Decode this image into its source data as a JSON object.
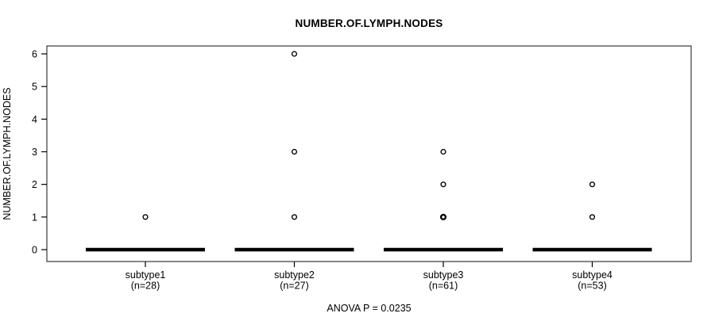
{
  "chart_data": {
    "type": "boxplot",
    "title": "NUMBER.OF.LYMPH.NODES",
    "ylabel": "NUMBER.OF.LYMPH.NODES",
    "xlabel": "",
    "annotation": "ANOVA P = 0.0235",
    "ylim": [
      0,
      6
    ],
    "yticks": [
      0,
      1,
      2,
      3,
      4,
      5,
      6
    ],
    "grid": false,
    "legend": null,
    "groups": [
      {
        "label": "subtype1",
        "n_label": "(n=28)",
        "n": 28,
        "median": 0,
        "q1": 0,
        "q3": 0,
        "whisker_low": 0,
        "whisker_high": 0,
        "outliers": [
          1
        ]
      },
      {
        "label": "subtype2",
        "n_label": "(n=27)",
        "n": 27,
        "median": 0,
        "q1": 0,
        "q3": 0,
        "whisker_low": 0,
        "whisker_high": 0,
        "outliers": [
          6,
          3,
          1
        ]
      },
      {
        "label": "subtype3",
        "n_label": "(n=61)",
        "n": 61,
        "median": 0,
        "q1": 0,
        "q3": 0,
        "whisker_low": 0,
        "whisker_high": 0,
        "outliers": [
          3,
          2,
          1,
          1
        ]
      },
      {
        "label": "subtype4",
        "n_label": "(n=53)",
        "n": 53,
        "median": 0,
        "q1": 0,
        "q3": 0,
        "whisker_low": 0,
        "whisker_high": 0,
        "outliers": [
          2,
          1
        ]
      }
    ]
  },
  "colors": {
    "line": "#000000",
    "frame": "#3a3a3a",
    "text": "#000000",
    "background": "#ffffff"
  }
}
